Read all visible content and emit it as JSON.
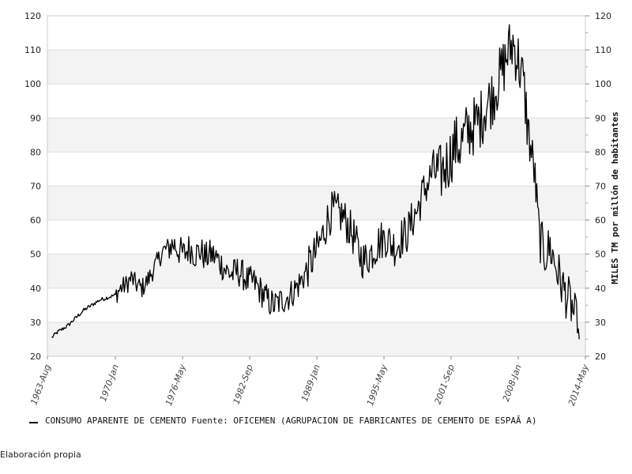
{
  "chart_data": {
    "type": "line",
    "title": "",
    "xlabel": "",
    "ylabel": "MILES TM por millón de habitantes",
    "ylim": [
      20,
      120
    ],
    "xlim": [
      "1963-08",
      "2014-05"
    ],
    "yticks": [
      20,
      30,
      40,
      50,
      60,
      70,
      80,
      90,
      100,
      110,
      120
    ],
    "xticks": [
      "1963-Aug",
      "1970-Jan",
      "1976-May",
      "1982-Sep",
      "1989-Jan",
      "1995-May",
      "2001-Sep",
      "2008-Jan",
      "2014-May"
    ],
    "secondary_y_axis": "mirrors primary (right side)",
    "grid": "horizontal bands",
    "legend_position": "bottom-left",
    "line_color": "#000000",
    "series": [
      {
        "name": "CONSUMO APARENTE DE CEMENTO  Fuente: OFICEMEN (AGRUPACION DE FABRICANTES DE CEMENTO DE ESPAÃ A)",
        "points": [
          [
            "1964-01",
            25.5
          ],
          [
            "1964-07",
            27
          ],
          [
            "1965-01",
            28
          ],
          [
            "1965-07",
            29
          ],
          [
            "1966-01",
            30.5
          ],
          [
            "1966-07",
            32
          ],
          [
            "1967-01",
            33.5
          ],
          [
            "1967-07",
            34.5
          ],
          [
            "1968-01",
            35.5
          ],
          [
            "1968-07",
            36.5
          ],
          [
            "1969-01",
            37
          ],
          [
            "1969-07",
            37.5
          ],
          [
            "1970-01",
            38
          ],
          [
            "1970-07",
            40
          ],
          [
            "1971-01",
            41
          ],
          [
            "1971-07",
            43
          ],
          [
            "1972-01",
            41
          ],
          [
            "1972-07",
            40
          ],
          [
            "1973-01",
            42
          ],
          [
            "1973-07",
            45
          ],
          [
            "1974-01",
            48
          ],
          [
            "1974-07",
            51
          ],
          [
            "1975-01",
            52
          ],
          [
            "1975-07",
            53
          ],
          [
            "1976-01",
            51
          ],
          [
            "1976-07",
            50
          ],
          [
            "1977-01",
            52
          ],
          [
            "1977-07",
            50
          ],
          [
            "1978-01",
            51
          ],
          [
            "1978-07",
            49
          ],
          [
            "1979-01",
            50
          ],
          [
            "1979-07",
            49
          ],
          [
            "1980-01",
            47
          ],
          [
            "1980-07",
            45
          ],
          [
            "1981-01",
            44
          ],
          [
            "1981-07",
            45
          ],
          [
            "1982-01",
            44
          ],
          [
            "1982-07",
            42
          ],
          [
            "1983-01",
            42
          ],
          [
            "1983-07",
            40
          ],
          [
            "1984-01",
            38
          ],
          [
            "1984-07",
            36
          ],
          [
            "1985-01",
            35
          ],
          [
            "1985-07",
            36
          ],
          [
            "1986-01",
            37
          ],
          [
            "1986-07",
            38
          ],
          [
            "1987-01",
            40
          ],
          [
            "1987-07",
            42
          ],
          [
            "1988-01",
            45
          ],
          [
            "1988-07",
            48
          ],
          [
            "1989-01",
            51
          ],
          [
            "1989-07",
            55
          ],
          [
            "1990-01",
            60
          ],
          [
            "1990-07",
            63
          ],
          [
            "1991-01",
            62
          ],
          [
            "1991-07",
            61
          ],
          [
            "1992-01",
            58
          ],
          [
            "1992-07",
            55
          ],
          [
            "1993-01",
            50
          ],
          [
            "1993-07",
            48
          ],
          [
            "1994-01",
            50
          ],
          [
            "1994-07",
            52
          ],
          [
            "1995-01",
            54
          ],
          [
            "1995-07",
            55
          ],
          [
            "1996-01",
            53
          ],
          [
            "1996-07",
            52
          ],
          [
            "1997-01",
            55
          ],
          [
            "1997-07",
            56
          ],
          [
            "1998-01",
            60
          ],
          [
            "1998-07",
            63
          ],
          [
            "1999-01",
            68
          ],
          [
            "1999-07",
            71
          ],
          [
            "2000-01",
            75
          ],
          [
            "2000-07",
            73
          ],
          [
            "2001-01",
            75
          ],
          [
            "2001-07",
            78
          ],
          [
            "2002-01",
            82
          ],
          [
            "2002-07",
            82
          ],
          [
            "2003-01",
            85
          ],
          [
            "2003-07",
            87
          ],
          [
            "2004-01",
            88
          ],
          [
            "2004-07",
            90
          ],
          [
            "2005-01",
            94
          ],
          [
            "2005-07",
            96
          ],
          [
            "2006-01",
            100
          ],
          [
            "2006-07",
            104
          ],
          [
            "2007-01",
            109
          ],
          [
            "2007-07",
            112
          ],
          [
            "2008-01",
            107
          ],
          [
            "2008-07",
            100
          ],
          [
            "2009-01",
            84
          ],
          [
            "2009-07",
            75
          ],
          [
            "2010-01",
            55
          ],
          [
            "2010-07",
            50
          ],
          [
            "2011-01",
            52
          ],
          [
            "2011-07",
            47
          ],
          [
            "2012-01",
            42
          ],
          [
            "2012-07",
            38
          ],
          [
            "2013-01",
            35
          ],
          [
            "2013-07",
            30
          ],
          [
            "2013-10",
            25
          ]
        ]
      }
    ]
  },
  "footer": {
    "note": "Elaboración propia"
  }
}
